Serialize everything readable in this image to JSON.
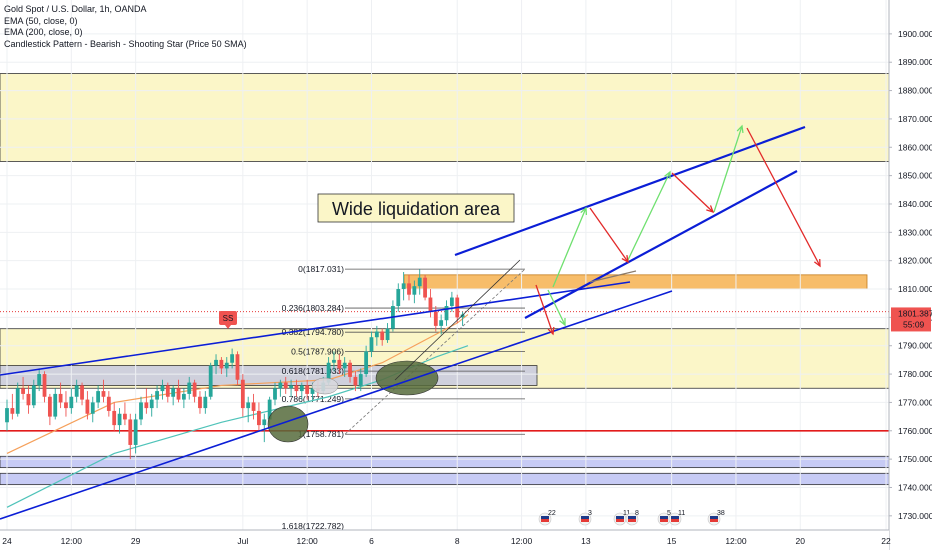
{
  "legend": {
    "symbol": "Gold Spot / U.S. Dollar, 1h, OANDA",
    "ema50": "EMA (50, close, 0)",
    "ema200": "EMA (200, close, 0)",
    "pattern": "Candlestick Pattern - Bearish - Shooting Star (Price 50 SMA)"
  },
  "annotation": {
    "text": "Wide liquidation area"
  },
  "price_label": {
    "value": "1801.387",
    "countdown": "55:09"
  },
  "pattern_badge": "SS",
  "colors": {
    "up": "#26a69a",
    "down": "#ef5350",
    "ema50": "#f5a05b",
    "ema200": "#4fc3b9",
    "trend": "#0b1ed6",
    "zone_yellow": "#fbf6c8",
    "zone_orange": "#f7bd6a",
    "zone_gray": "#cfd0dc",
    "zone_blue": "#c7cbf5",
    "support_red": "#e21b1b",
    "green_arrow": "#6fe06f",
    "red_arrow": "#e22a2a",
    "ellipse": "#566b3c"
  },
  "events": [
    {
      "label": "22",
      "icon": "flag-icon"
    },
    {
      "label": "3",
      "icon": "flag-icon"
    },
    {
      "label": "11",
      "icon": "flag-icon"
    },
    {
      "label": "8",
      "icon": "flag-icon"
    },
    {
      "label": "5",
      "icon": "flag-icon"
    },
    {
      "label": "11",
      "icon": "flag-icon"
    },
    {
      "label": "38",
      "icon": "flag-icon"
    }
  ],
  "chart_data": {
    "type": "candlestick",
    "title": "Gold Spot / U.S. Dollar, 1h, OANDA",
    "ylim": [
      1725,
      1905
    ],
    "yticks": [
      1730,
      1740,
      1750,
      1760,
      1770,
      1780,
      1790,
      1800,
      1810,
      1820,
      1830,
      1840,
      1850,
      1860,
      1870,
      1880,
      1890,
      1900
    ],
    "ytick_labels": [
      "1730.000",
      "1740.000",
      "1750.000",
      "1760.000",
      "1770.000",
      "1780.000",
      "1790.000",
      "1800.000",
      "1810.000",
      "1820.000",
      "1830.000",
      "1840.000",
      "1850.000",
      "1860.000",
      "1870.000",
      "1880.000",
      "1890.000",
      "1900.000"
    ],
    "xticks": [
      {
        "label": "24",
        "bar": 0
      },
      {
        "label": "12:00",
        "bar": 12
      },
      {
        "label": "29",
        "bar": 24
      },
      {
        "label": "Jul",
        "bar": 44
      },
      {
        "label": "12:00",
        "bar": 56
      },
      {
        "label": "6",
        "bar": 68
      },
      {
        "label": "8",
        "bar": 84
      },
      {
        "label": "12:00",
        "bar": 96
      },
      {
        "label": "13",
        "bar": 108
      },
      {
        "label": "15",
        "bar": 124
      },
      {
        "label": "12:00",
        "bar": 136
      },
      {
        "label": "20",
        "bar": 148
      },
      {
        "label": "22",
        "bar": 164
      }
    ],
    "last_price": 1801.387,
    "candles": [
      [
        1763,
        1771,
        1760,
        1768
      ],
      [
        1768,
        1773,
        1764,
        1766
      ],
      [
        1766,
        1777,
        1765,
        1775
      ],
      [
        1775,
        1779,
        1771,
        1773
      ],
      [
        1773,
        1776,
        1766,
        1769
      ],
      [
        1769,
        1778,
        1768,
        1776
      ],
      [
        1776,
        1782,
        1774,
        1780
      ],
      [
        1780,
        1781,
        1770,
        1772
      ],
      [
        1772,
        1773,
        1762,
        1765
      ],
      [
        1765,
        1775,
        1764,
        1773
      ],
      [
        1773,
        1777,
        1768,
        1770
      ],
      [
        1770,
        1774,
        1765,
        1768
      ],
      [
        1768,
        1775,
        1766,
        1772
      ],
      [
        1772,
        1778,
        1770,
        1776
      ],
      [
        1776,
        1777,
        1769,
        1771
      ],
      [
        1771,
        1774,
        1764,
        1766
      ],
      [
        1766,
        1772,
        1763,
        1770
      ],
      [
        1770,
        1776,
        1768,
        1774
      ],
      [
        1774,
        1778,
        1770,
        1772
      ],
      [
        1772,
        1774,
        1765,
        1767
      ],
      [
        1767,
        1770,
        1760,
        1762
      ],
      [
        1762,
        1768,
        1759,
        1766
      ],
      [
        1766,
        1770,
        1762,
        1764
      ],
      [
        1764,
        1766,
        1750,
        1755
      ],
      [
        1755,
        1766,
        1752,
        1764
      ],
      [
        1764,
        1772,
        1762,
        1770
      ],
      [
        1770,
        1775,
        1766,
        1768
      ],
      [
        1768,
        1773,
        1765,
        1771
      ],
      [
        1771,
        1776,
        1768,
        1774
      ],
      [
        1774,
        1778,
        1771,
        1776
      ],
      [
        1776,
        1777,
        1770,
        1772
      ],
      [
        1772,
        1776,
        1769,
        1775
      ],
      [
        1775,
        1778,
        1770,
        1771
      ],
      [
        1771,
        1775,
        1768,
        1773
      ],
      [
        1773,
        1779,
        1771,
        1777
      ],
      [
        1777,
        1778,
        1770,
        1772
      ],
      [
        1772,
        1774,
        1766,
        1768
      ],
      [
        1768,
        1774,
        1766,
        1772
      ],
      [
        1772,
        1784,
        1771,
        1783
      ],
      [
        1783,
        1787,
        1780,
        1785
      ],
      [
        1785,
        1786,
        1780,
        1782
      ],
      [
        1782,
        1786,
        1779,
        1784
      ],
      [
        1784,
        1789,
        1782,
        1787
      ],
      [
        1787,
        1788,
        1776,
        1778
      ],
      [
        1778,
        1780,
        1765,
        1768
      ],
      [
        1768,
        1772,
        1763,
        1770
      ],
      [
        1770,
        1773,
        1764,
        1767
      ],
      [
        1767,
        1770,
        1760,
        1762
      ],
      [
        1762,
        1766,
        1756,
        1764
      ],
      [
        1764,
        1772,
        1762,
        1771
      ],
      [
        1771,
        1777,
        1769,
        1775
      ],
      [
        1775,
        1778,
        1772,
        1777
      ],
      [
        1777,
        1779,
        1773,
        1775
      ],
      [
        1775,
        1778,
        1772,
        1776
      ],
      [
        1776,
        1778,
        1772,
        1774
      ],
      [
        1774,
        1777,
        1771,
        1776
      ],
      [
        1776,
        1778,
        1771,
        1773
      ],
      [
        1773,
        1777,
        1771,
        1775
      ],
      [
        1775,
        1778,
        1772,
        1774
      ],
      [
        1774,
        1779,
        1773,
        1777
      ],
      [
        1777,
        1786,
        1776,
        1784
      ],
      [
        1784,
        1788,
        1781,
        1785
      ],
      [
        1785,
        1787,
        1780,
        1782
      ],
      [
        1782,
        1786,
        1779,
        1784
      ],
      [
        1784,
        1785,
        1777,
        1779
      ],
      [
        1779,
        1781,
        1774,
        1776
      ],
      [
        1776,
        1782,
        1774,
        1780
      ],
      [
        1780,
        1790,
        1779,
        1788
      ],
      [
        1788,
        1795,
        1786,
        1793
      ],
      [
        1793,
        1797,
        1790,
        1795
      ],
      [
        1795,
        1796,
        1790,
        1792
      ],
      [
        1792,
        1798,
        1791,
        1796
      ],
      [
        1796,
        1806,
        1795,
        1804
      ],
      [
        1804,
        1812,
        1802,
        1810
      ],
      [
        1810,
        1816,
        1806,
        1812
      ],
      [
        1812,
        1815,
        1806,
        1808
      ],
      [
        1808,
        1813,
        1805,
        1811
      ],
      [
        1811,
        1817,
        1808,
        1814
      ],
      [
        1814,
        1815,
        1806,
        1807
      ],
      [
        1807,
        1810,
        1800,
        1802
      ],
      [
        1802,
        1804,
        1795,
        1797
      ],
      [
        1797,
        1801,
        1794,
        1799
      ],
      [
        1799,
        1806,
        1797,
        1804
      ],
      [
        1804,
        1809,
        1802,
        1807
      ],
      [
        1807,
        1808,
        1798,
        1800
      ],
      [
        1800,
        1802,
        1797,
        1801
      ]
    ],
    "ema50_label": "EMA (50, close, 0)",
    "ema200_label": "EMA (200, close, 0)",
    "ema50": [
      [
        0,
        1752
      ],
      [
        20,
        1770
      ],
      [
        40,
        1776
      ],
      [
        60,
        1778
      ],
      [
        70,
        1784
      ],
      [
        84,
        1798
      ],
      [
        86,
        1801
      ]
    ],
    "ema200": [
      [
        0,
        1733
      ],
      [
        20,
        1752
      ],
      [
        40,
        1763
      ],
      [
        60,
        1772
      ],
      [
        70,
        1778
      ],
      [
        80,
        1786
      ],
      [
        86,
        1790
      ]
    ],
    "fibonacci": [
      {
        "label": "0(1817.031)",
        "value": 1817.031
      },
      {
        "label": "0.236(1803.284)",
        "value": 1803.284
      },
      {
        "label": "0.382(1794.780)",
        "value": 1794.78
      },
      {
        "label": "0.5(1787.906)",
        "value": 1787.906
      },
      {
        "label": "0.618(1781.033)",
        "value": 1781.033
      },
      {
        "label": "0.786(1771.249)",
        "value": 1771.249
      },
      {
        "label": "1(1758.781)",
        "value": 1758.781
      },
      {
        "label": "1.618(1722.782)",
        "value": 1722.782
      }
    ],
    "zones": [
      {
        "kind": "yellow",
        "from": 1855,
        "to": 1886
      },
      {
        "kind": "yellow",
        "from": 1775,
        "to": 1796
      },
      {
        "kind": "orange",
        "from": 1810,
        "to": 1815
      },
      {
        "kind": "gray",
        "from": 1776,
        "to": 1783
      },
      {
        "kind": "blue",
        "from": 1747,
        "to": 1751
      },
      {
        "kind": "blue",
        "from": 1741,
        "to": 1745
      }
    ],
    "horizontal_lines": [
      {
        "kind": "support_red",
        "value": 1760
      },
      {
        "kind": "dotted_red",
        "value": 1802
      }
    ]
  }
}
